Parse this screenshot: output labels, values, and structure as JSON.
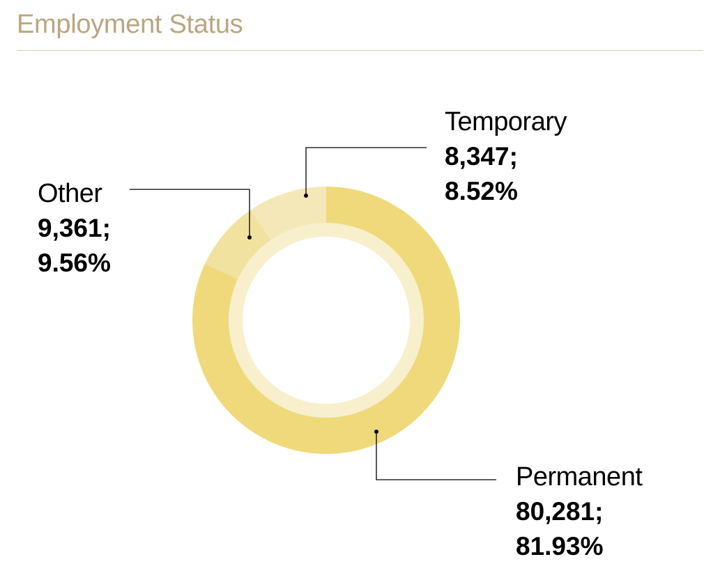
{
  "header": {
    "title": "Employment Status"
  },
  "chart_data": {
    "type": "pie",
    "style": "donut",
    "title": "Employment Status",
    "slices": [
      {
        "label": "Permanent",
        "value": 80281,
        "value_text": "80,281;",
        "percent": 81.93,
        "percent_text": "81.93%",
        "color": "#efd97b"
      },
      {
        "label": "Temporary",
        "value": 8347,
        "value_text": "8,347;",
        "percent": 8.52,
        "percent_text": "8.52%",
        "color": "#f2e29f"
      },
      {
        "label": "Other",
        "value": 9361,
        "value_text": "9,361;",
        "percent": 9.56,
        "percent_text": "9.56%",
        "color": "#f5e8b8"
      }
    ],
    "inner_ring_color": "#f8efcc",
    "leader_color": "#000000"
  }
}
